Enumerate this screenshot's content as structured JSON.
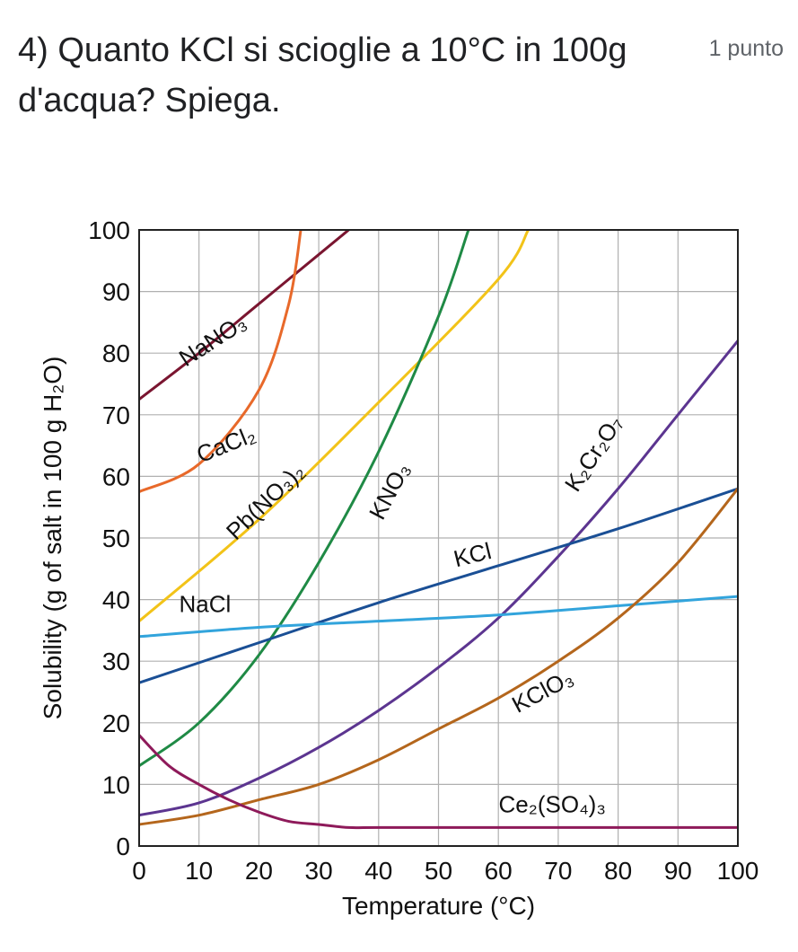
{
  "question": {
    "text": "4) Quanto KCl si scioglie a 10°C in 100g d'acqua? Spiega.",
    "points": "1 punto"
  },
  "chart_data": {
    "type": "line",
    "title": "",
    "xlabel": "Temperature (°C)",
    "ylabel": "Solubility (g of salt in 100 g H₂O)",
    "xlim": [
      0,
      100
    ],
    "ylim": [
      0,
      100
    ],
    "xticks": [
      0,
      10,
      20,
      30,
      40,
      50,
      60,
      70,
      80,
      90,
      100
    ],
    "yticks": [
      0,
      10,
      20,
      30,
      40,
      50,
      60,
      70,
      80,
      90,
      100
    ],
    "grid": true,
    "series": [
      {
        "name": "NaNO3",
        "label": "NaNO₃",
        "color": "#7a1530",
        "x": [
          0,
          10,
          20,
          30,
          35
        ],
        "y": [
          72.5,
          80,
          88,
          96,
          100
        ]
      },
      {
        "name": "CaCl2",
        "label": "CaCl₂",
        "color": "#e8692a",
        "x": [
          0,
          10,
          20,
          25,
          27
        ],
        "y": [
          57.5,
          62,
          74,
          88,
          100
        ]
      },
      {
        "name": "Pb(NO3)2",
        "label": "Pb(NO₃)₂",
        "color": "#f2c318",
        "x": [
          0,
          20,
          40,
          60,
          65
        ],
        "y": [
          36.5,
          53,
          72,
          92,
          100
        ]
      },
      {
        "name": "KNO3",
        "label": "KNO₃",
        "color": "#1f8a45",
        "x": [
          0,
          10,
          20,
          30,
          40,
          50,
          55
        ],
        "y": [
          13,
          20,
          31,
          46,
          64,
          86,
          100
        ]
      },
      {
        "name": "K2Cr2O7",
        "label": "K₂Cr₂O₇",
        "color": "#5c3590",
        "x": [
          0,
          10,
          20,
          30,
          40,
          50,
          60,
          70,
          80,
          90,
          100
        ],
        "y": [
          5,
          7,
          11,
          16,
          22,
          29,
          37,
          47,
          58,
          70,
          82
        ]
      },
      {
        "name": "KCl",
        "label": "KCl",
        "color": "#1a4f95",
        "x": [
          0,
          20,
          40,
          60,
          80,
          100
        ],
        "y": [
          26.5,
          33,
          39.5,
          45.5,
          51.5,
          58
        ]
      },
      {
        "name": "NaCl",
        "label": "NaCl",
        "color": "#32a4dc",
        "x": [
          0,
          20,
          40,
          60,
          80,
          100
        ],
        "y": [
          34,
          35.5,
          36.5,
          37.5,
          39,
          40.5
        ]
      },
      {
        "name": "KClO3",
        "label": "KClO₃",
        "color": "#b4661c",
        "x": [
          0,
          10,
          20,
          30,
          40,
          50,
          60,
          70,
          80,
          90,
          100
        ],
        "y": [
          3.5,
          5,
          7.5,
          10,
          14,
          19,
          24,
          30,
          37,
          46,
          58
        ]
      },
      {
        "name": "Ce2(SO4)3",
        "label": "Ce₂(SO₄)₃",
        "color": "#8e1a5a",
        "x": [
          0,
          5,
          10,
          15,
          20,
          25,
          30,
          35,
          40,
          60,
          80,
          100
        ],
        "y": [
          18,
          13,
          10,
          7.5,
          5.5,
          4,
          3.5,
          3,
          3,
          3,
          3,
          3
        ]
      }
    ],
    "annotations": [
      {
        "text": "NaNO₃",
        "series": "NaNO3"
      },
      {
        "text": "CaCl₂",
        "series": "CaCl2"
      },
      {
        "text": "Pb(NO₃)₂",
        "series": "Pb(NO3)2"
      },
      {
        "text": "KNO₃",
        "series": "KNO3"
      },
      {
        "text": "K₂Cr₂O₇",
        "series": "K2Cr2O7"
      },
      {
        "text": "KCl",
        "series": "KCl"
      },
      {
        "text": "NaCl",
        "series": "NaCl"
      },
      {
        "text": "KClO₃",
        "series": "KClO3"
      },
      {
        "text": "Ce₂(SO₄)₃",
        "series": "Ce2(SO4)3"
      }
    ]
  }
}
